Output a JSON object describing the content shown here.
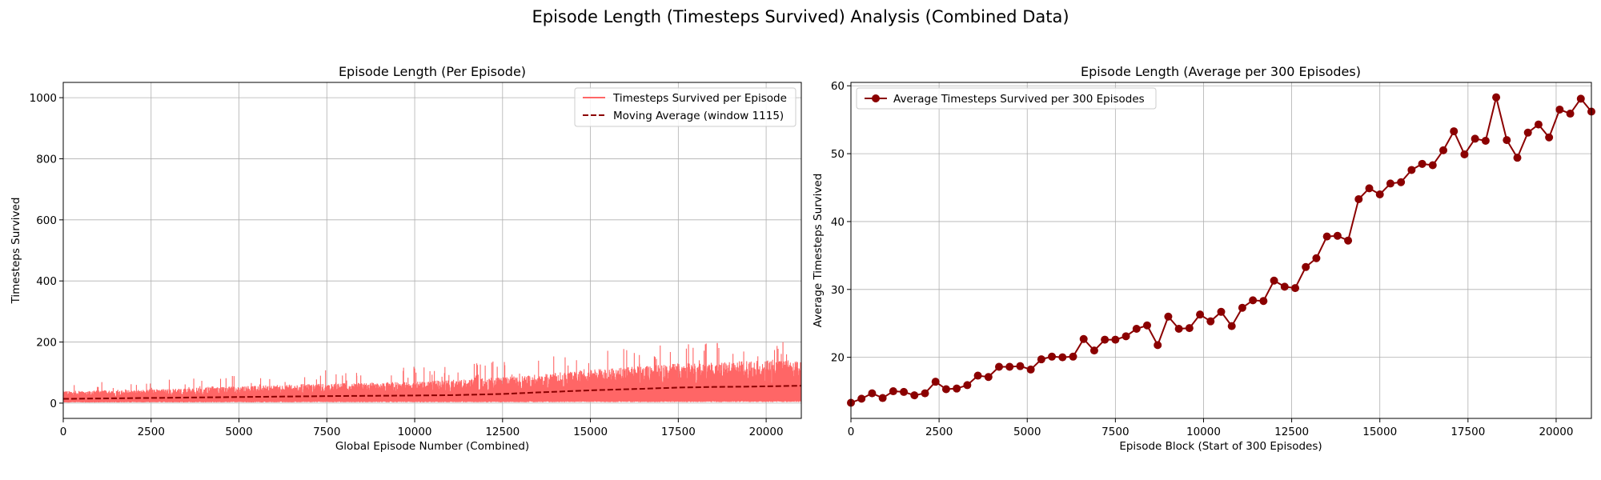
{
  "figure": {
    "title": "Episode Length (Timesteps Survived) Analysis (Combined Data)"
  },
  "colors": {
    "raw_line": "#ff6666",
    "avg_line": "#8b0000",
    "grid": "#b0b0b0"
  },
  "chart_data": [
    {
      "type": "line",
      "title": "Episode Length (Per Episode)",
      "xlabel": "Global Episode Number (Combined)",
      "ylabel": "Timesteps Survived",
      "xlim": [
        0,
        21000
      ],
      "ylim": [
        -50,
        1050
      ],
      "xticks": [
        0,
        2500,
        5000,
        7500,
        10000,
        12500,
        15000,
        17500,
        20000
      ],
      "yticks": [
        0,
        200,
        400,
        600,
        800,
        1000
      ],
      "grid": true,
      "legend_position": "top-right",
      "series": [
        {
          "name": "Timesteps Survived per Episode",
          "style": "solid",
          "color": "#ff6666",
          "envelope": {
            "x": [
              0,
              2500,
              5000,
              7500,
              10000,
              12500,
              15000,
              17500,
              20000,
              21000
            ],
            "low": [
              5,
              6,
              6,
              7,
              7,
              7,
              8,
              8,
              9,
              9
            ],
            "typical_high": [
              40,
              45,
              55,
              65,
              70,
              85,
              110,
              130,
              140,
              140
            ],
            "peak": [
              70,
              75,
              95,
              110,
              120,
              140,
              165,
              200,
              205,
              195
            ]
          }
        },
        {
          "name": "Moving Average (window 1115)",
          "style": "dashed",
          "color": "#8b0000",
          "x": [
            0,
            2500,
            5000,
            7500,
            10000,
            11000,
            12500,
            13500,
            15000,
            16500,
            17500,
            18500,
            19500,
            20500,
            21000
          ],
          "y": [
            14,
            17,
            20,
            23,
            25,
            26,
            30,
            35,
            42,
            47,
            51,
            53,
            54,
            56,
            57
          ]
        }
      ]
    },
    {
      "type": "line",
      "title": "Episode Length (Average per 300 Episodes)",
      "xlabel": "Episode Block (Start of 300 Episodes)",
      "ylabel": "Average Timesteps Survived",
      "xlim": [
        0,
        21000
      ],
      "ylim": [
        11,
        60.5
      ],
      "xticks": [
        0,
        2500,
        5000,
        7500,
        10000,
        12500,
        15000,
        17500,
        20000
      ],
      "yticks": [
        20,
        30,
        40,
        50,
        60
      ],
      "grid": true,
      "legend_position": "top-left",
      "series": [
        {
          "name": "Average Timesteps Survived per 300 Episodes",
          "color": "#8b0000",
          "marker": "circle",
          "x": [
            0,
            300,
            600,
            900,
            1200,
            1500,
            1800,
            2100,
            2400,
            2700,
            3000,
            3300,
            3600,
            3900,
            4200,
            4500,
            4800,
            5100,
            5400,
            5700,
            6000,
            6300,
            6600,
            6900,
            7200,
            7500,
            7800,
            8100,
            8400,
            8700,
            9000,
            9300,
            9600,
            9900,
            10200,
            10500,
            10800,
            11100,
            11400,
            11700,
            12000,
            12300,
            12600,
            12900,
            13200,
            13500,
            13800,
            14100,
            14400,
            14700,
            15000,
            15300,
            15600,
            15900,
            16200,
            16500,
            16800,
            17100,
            17400,
            17700,
            18000,
            18300,
            18600,
            18900,
            19200,
            19500,
            19800,
            20100,
            20400,
            20700,
            21000
          ],
          "y": [
            13.3,
            13.9,
            14.7,
            14.0,
            15.0,
            14.9,
            14.4,
            14.7,
            16.4,
            15.3,
            15.4,
            15.9,
            17.3,
            17.1,
            18.6,
            18.6,
            18.7,
            18.2,
            19.7,
            20.1,
            20.0,
            20.1,
            22.7,
            21.0,
            22.6,
            22.6,
            23.1,
            24.2,
            24.7,
            21.8,
            26.0,
            24.2,
            24.3,
            26.3,
            25.3,
            26.7,
            24.6,
            27.3,
            28.4,
            28.3,
            31.3,
            30.4,
            30.2,
            33.3,
            34.6,
            37.8,
            37.9,
            37.2,
            43.3,
            44.9,
            44.0,
            45.6,
            45.8,
            47.6,
            48.5,
            48.3,
            50.5,
            53.3,
            49.9,
            52.2,
            51.9,
            58.3,
            52.0,
            49.4,
            53.1,
            54.3,
            52.4,
            56.5,
            55.9,
            58.1,
            56.2
          ]
        }
      ]
    }
  ]
}
